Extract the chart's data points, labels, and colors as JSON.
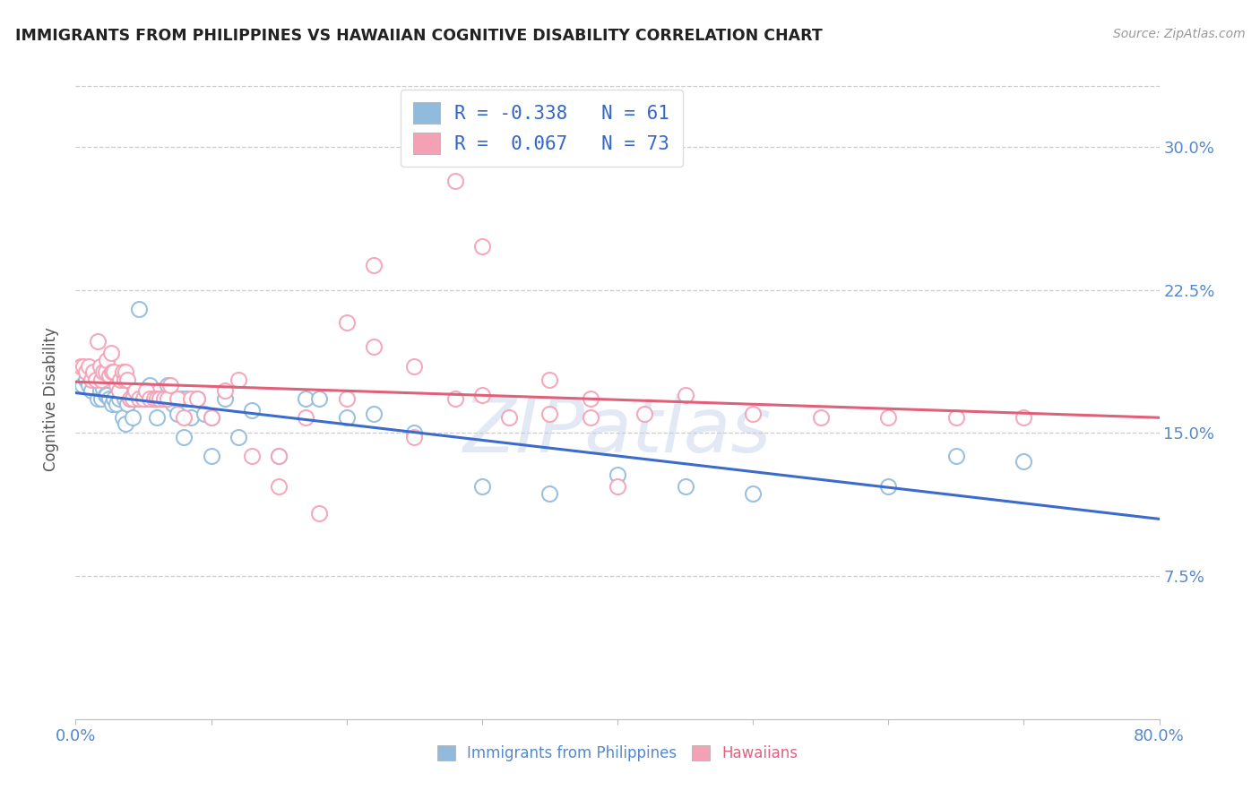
{
  "title": "IMMIGRANTS FROM PHILIPPINES VS HAWAIIAN COGNITIVE DISABILITY CORRELATION CHART",
  "source": "Source: ZipAtlas.com",
  "ylabel": "Cognitive Disability",
  "ytick_labels": [
    "7.5%",
    "15.0%",
    "22.5%",
    "30.0%"
  ],
  "ytick_values": [
    0.075,
    0.15,
    0.225,
    0.3
  ],
  "xlim": [
    0.0,
    0.8
  ],
  "ylim": [
    0.0,
    0.335
  ],
  "xtick_vals": [
    0.0,
    0.1,
    0.2,
    0.3,
    0.4,
    0.5,
    0.6,
    0.7,
    0.8
  ],
  "blue_R": -0.338,
  "blue_N": 61,
  "pink_R": 0.067,
  "pink_N": 73,
  "blue_color": "#90bbdd",
  "pink_color": "#f4a0b5",
  "blue_line_color": "#3b6bcc",
  "pink_line_color": "#e0607a",
  "watermark": "ZIPatlas",
  "legend_blue_label": "R = -0.338   N = 61",
  "legend_pink_label": "R =  0.067   N = 73",
  "bottom_label_blue": "Immigrants from Philippines",
  "bottom_label_pink": "Hawaiians",
  "blue_scatter_x": [
    0.005,
    0.008,
    0.01,
    0.012,
    0.015,
    0.016,
    0.018,
    0.019,
    0.02,
    0.022,
    0.023,
    0.025,
    0.027,
    0.028,
    0.03,
    0.032,
    0.033,
    0.035,
    0.036,
    0.037,
    0.038,
    0.04,
    0.042,
    0.044,
    0.045,
    0.047,
    0.05,
    0.052,
    0.055,
    0.057,
    0.06,
    0.062,
    0.065,
    0.068,
    0.07,
    0.072,
    0.075,
    0.078,
    0.082,
    0.085,
    0.09,
    0.095,
    0.1,
    0.11,
    0.12,
    0.13,
    0.15,
    0.17,
    0.2,
    0.22,
    0.25,
    0.3,
    0.35,
    0.4,
    0.45,
    0.5,
    0.6,
    0.65,
    0.7,
    0.18,
    0.08
  ],
  "blue_scatter_y": [
    0.175,
    0.178,
    0.175,
    0.172,
    0.178,
    0.168,
    0.172,
    0.168,
    0.173,
    0.17,
    0.17,
    0.168,
    0.165,
    0.168,
    0.165,
    0.168,
    0.172,
    0.158,
    0.168,
    0.155,
    0.165,
    0.168,
    0.158,
    0.172,
    0.168,
    0.215,
    0.172,
    0.168,
    0.175,
    0.168,
    0.158,
    0.172,
    0.168,
    0.175,
    0.168,
    0.165,
    0.16,
    0.168,
    0.168,
    0.158,
    0.168,
    0.16,
    0.138,
    0.168,
    0.148,
    0.162,
    0.138,
    0.168,
    0.158,
    0.16,
    0.15,
    0.122,
    0.118,
    0.128,
    0.122,
    0.118,
    0.122,
    0.138,
    0.135,
    0.168,
    0.148
  ],
  "pink_scatter_x": [
    0.004,
    0.006,
    0.008,
    0.01,
    0.012,
    0.013,
    0.015,
    0.016,
    0.018,
    0.019,
    0.02,
    0.022,
    0.023,
    0.025,
    0.026,
    0.027,
    0.028,
    0.03,
    0.032,
    0.033,
    0.035,
    0.036,
    0.037,
    0.038,
    0.04,
    0.042,
    0.044,
    0.047,
    0.05,
    0.052,
    0.055,
    0.058,
    0.06,
    0.062,
    0.065,
    0.068,
    0.07,
    0.075,
    0.08,
    0.085,
    0.09,
    0.1,
    0.11,
    0.12,
    0.13,
    0.15,
    0.17,
    0.2,
    0.22,
    0.25,
    0.28,
    0.3,
    0.32,
    0.35,
    0.38,
    0.4,
    0.42,
    0.45,
    0.5,
    0.55,
    0.6,
    0.3,
    0.2,
    0.38,
    0.1,
    0.15,
    0.25,
    0.18,
    0.35,
    0.28,
    0.22,
    0.65,
    0.7
  ],
  "pink_scatter_y": [
    0.185,
    0.185,
    0.182,
    0.185,
    0.178,
    0.182,
    0.178,
    0.198,
    0.185,
    0.178,
    0.182,
    0.182,
    0.188,
    0.18,
    0.192,
    0.182,
    0.182,
    0.175,
    0.172,
    0.178,
    0.182,
    0.178,
    0.182,
    0.178,
    0.168,
    0.168,
    0.172,
    0.168,
    0.168,
    0.172,
    0.168,
    0.168,
    0.168,
    0.168,
    0.168,
    0.168,
    0.175,
    0.168,
    0.158,
    0.168,
    0.168,
    0.158,
    0.172,
    0.178,
    0.138,
    0.138,
    0.158,
    0.168,
    0.195,
    0.185,
    0.168,
    0.17,
    0.158,
    0.16,
    0.168,
    0.122,
    0.16,
    0.17,
    0.16,
    0.158,
    0.158,
    0.248,
    0.208,
    0.158,
    0.158,
    0.122,
    0.148,
    0.108,
    0.178,
    0.282,
    0.238,
    0.158,
    0.158
  ]
}
